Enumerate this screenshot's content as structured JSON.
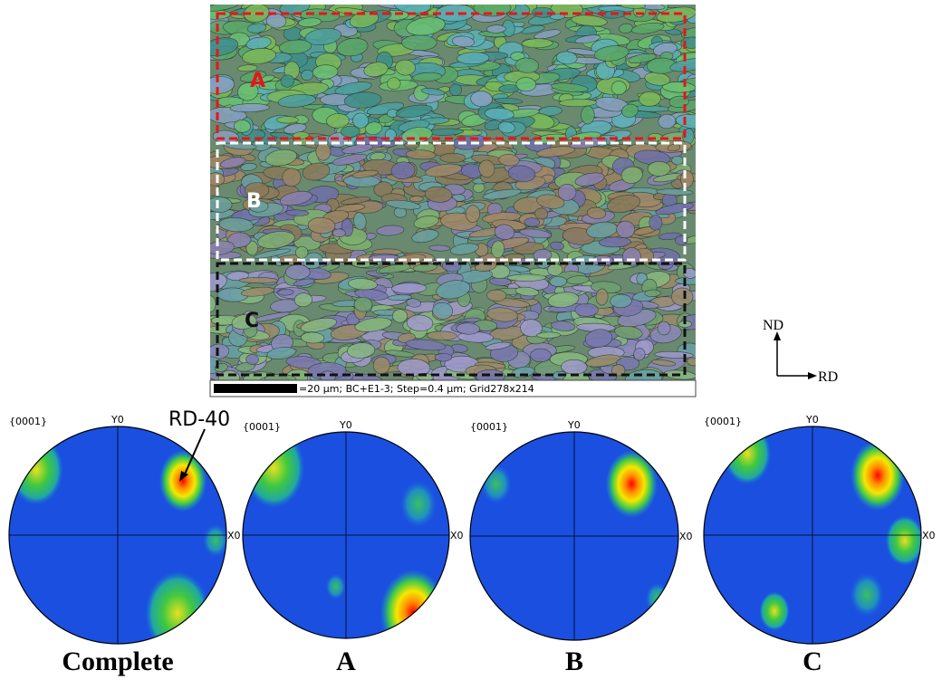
{
  "map": {
    "regions": [
      "A",
      "B",
      "C"
    ],
    "scale_text": "=20 µm; BC+E1-3; Step=0.4 µm; Grid278x214"
  },
  "axes": {
    "vertical": "ND",
    "horizontal": "RD"
  },
  "annotation": "RD-40",
  "pole_figures": [
    {
      "family": "{0001}",
      "y_label": "Y0",
      "x_label": "X0",
      "caption": "Complete"
    },
    {
      "family": "{0001}",
      "y_label": "Y0",
      "x_label": "X0",
      "caption": "A"
    },
    {
      "family": "{0001}",
      "y_label": "Y0",
      "x_label": "X0",
      "caption": "B"
    },
    {
      "family": "{0001}",
      "y_label": "Y0",
      "x_label": "X0",
      "caption": "C"
    }
  ]
}
